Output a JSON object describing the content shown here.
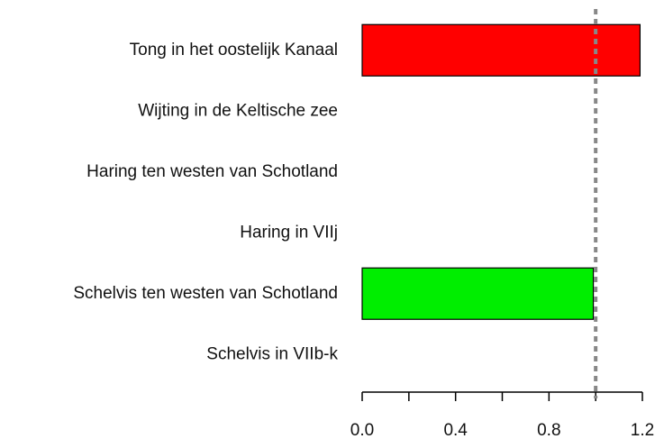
{
  "chart_data": {
    "type": "barh",
    "categories": [
      "Tong in het oostelijk Kanaal",
      "Wijting in de Keltische zee",
      "Haring ten westen van Schotland",
      "Haring in VIIj",
      "Schelvis ten westen van Schotland",
      "Schelvis in VIIb-k"
    ],
    "values": [
      1.19,
      null,
      null,
      null,
      0.99,
      null
    ],
    "colors": [
      "#ff0000",
      null,
      null,
      null,
      "#00ee00",
      null
    ],
    "xlim": [
      0,
      1.2
    ],
    "xticks": [
      {
        "value": 0,
        "label": "0.0"
      },
      {
        "value": 0.4,
        "label": "0.4"
      },
      {
        "value": 0.8,
        "label": "0.8"
      },
      {
        "value": 1.2,
        "label": "1.2"
      }
    ],
    "minor_xticks": [
      0.2,
      0.6,
      1.0
    ],
    "reference_line": {
      "value": 1.0,
      "color": "#888888"
    }
  }
}
